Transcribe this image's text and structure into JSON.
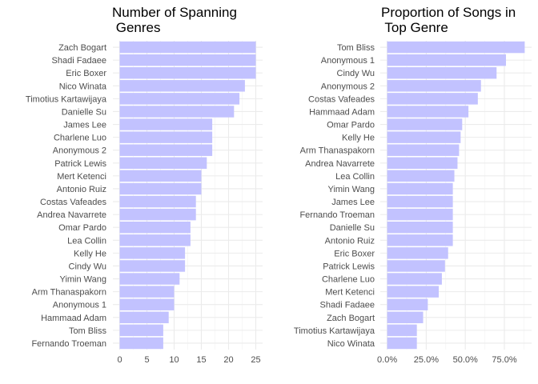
{
  "chart_data": [
    {
      "type": "bar",
      "orientation": "horizontal",
      "title_lines": [
        "Number of Spanning",
        " Genres"
      ],
      "xlabel": "",
      "ylabel": "",
      "categories": [
        "Zach Bogart",
        "Shadi Fadaee",
        "Eric Boxer",
        "Nico Winata",
        "Timotius Kartawijaya",
        "Danielle Su",
        "James Lee",
        "Charlene Luo",
        "Anonymous 2",
        "Patrick Lewis",
        "Mert Ketenci",
        "Antonio Ruiz",
        "Costas Vafeades",
        "Andrea Navarrete",
        "Omar Pardo",
        "Lea Collin",
        "Kelly He",
        "Cindy Wu",
        "Yimin Wang",
        "Arm Thanaspakorn",
        "Anonymous 1",
        "Hammaad Adam",
        "Tom Bliss",
        "Fernando Troeman"
      ],
      "values": [
        25,
        25,
        25,
        23,
        22,
        21,
        17,
        17,
        17,
        16,
        15,
        15,
        14,
        14,
        13,
        13,
        12,
        12,
        11,
        10,
        10,
        9,
        8,
        8
      ],
      "xlim": [
        -1.25,
        26.25
      ],
      "xticks": [
        0,
        5,
        10,
        15,
        20,
        25
      ],
      "xtick_labels": [
        "0",
        "5",
        "10",
        "15",
        "20",
        "25"
      ],
      "grid": true,
      "bar_color": "#c2c2ff"
    },
    {
      "type": "bar",
      "orientation": "horizontal",
      "title_lines": [
        "Proportion of Songs in",
        " Top Genre"
      ],
      "xlabel": "",
      "ylabel": "",
      "categories": [
        "Tom Bliss",
        "Anonymous 1",
        "Cindy Wu",
        "Anonymous 2",
        "Costas Vafeades",
        "Hammaad Adam",
        "Omar Pardo",
        "Kelly He",
        "Arm Thanaspakorn",
        "Andrea Navarrete",
        "Lea Collin",
        "Yimin Wang",
        "James Lee",
        "Fernando Troeman",
        "Danielle Su",
        "Antonio Ruiz",
        "Eric Boxer",
        "Patrick Lewis",
        "Charlene Luo",
        "Mert Ketenci",
        "Shadi Fadaee",
        "Zach Bogart",
        "Timotius Kartawijaya",
        "Nico Winata"
      ],
      "values": [
        0.88,
        0.76,
        0.7,
        0.6,
        0.58,
        0.52,
        0.48,
        0.47,
        0.46,
        0.45,
        0.43,
        0.42,
        0.42,
        0.42,
        0.42,
        0.42,
        0.39,
        0.37,
        0.35,
        0.33,
        0.26,
        0.23,
        0.19,
        0.19
      ],
      "xlim": [
        -0.044,
        0.924
      ],
      "xticks": [
        0,
        0.25,
        0.5,
        0.75
      ],
      "xtick_labels": [
        "0.0%",
        "25.0%",
        "50.0%",
        "75.0%"
      ],
      "grid": true,
      "bar_color": "#c2c2ff"
    }
  ]
}
